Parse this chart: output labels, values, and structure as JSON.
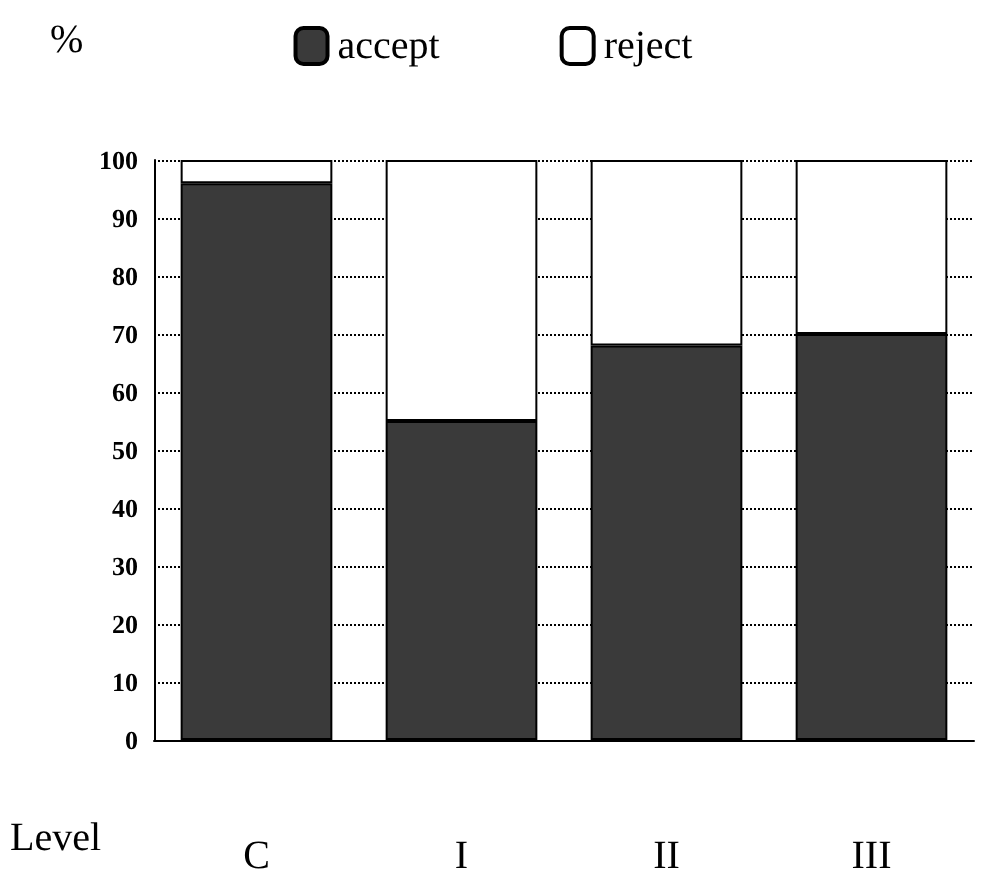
{
  "chart_data": {
    "type": "bar",
    "stacked": true,
    "ylabel": "%",
    "xlabel": "Level",
    "categories": [
      "C",
      "I",
      "II",
      "III"
    ],
    "series": [
      {
        "name": "accept",
        "color": "#3a3a3a",
        "values": [
          96,
          55,
          68,
          70
        ]
      },
      {
        "name": "reject",
        "color": "#ffffff",
        "values": [
          4,
          45,
          32,
          30
        ]
      }
    ],
    "ylim": [
      0,
      100
    ],
    "yticks": [
      0,
      10,
      20,
      30,
      40,
      50,
      60,
      70,
      80,
      90,
      100
    ],
    "grid": "y",
    "legend": "top"
  }
}
